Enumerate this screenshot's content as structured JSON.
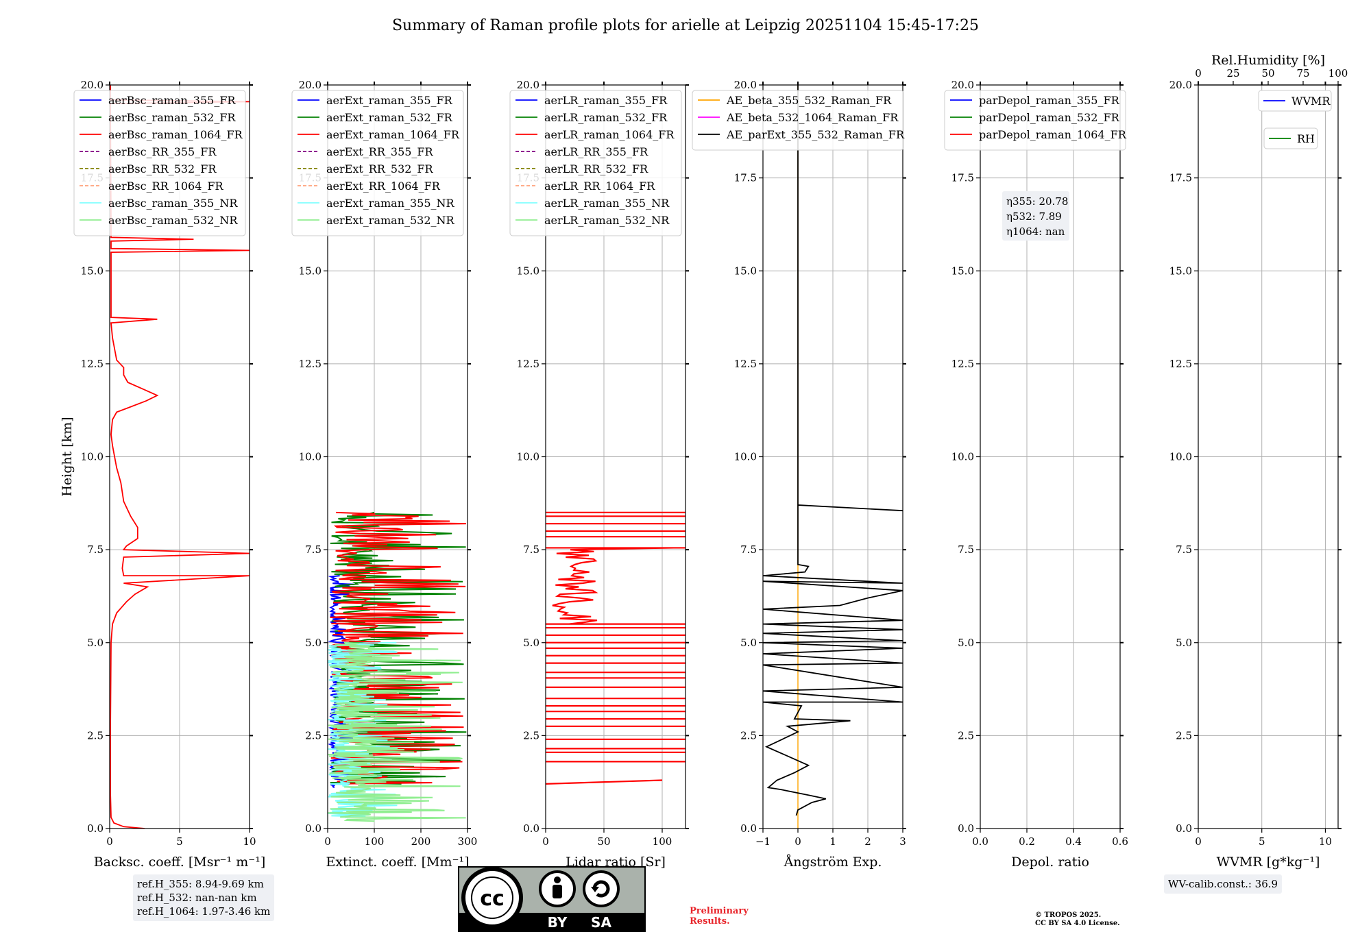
{
  "figure_title": "Summary of Raman profile plots for arielle at Leipzig 20251104 15:45-17:25",
  "ref_heights": [
    "ref.H_355: 8.94-9.69 km",
    "ref.H_532: nan-nan km",
    "ref.H_1064: 1.97-3.46 km"
  ],
  "wv_calib": "WV-calib.const.: 36.9",
  "preliminary": [
    "Preliminary",
    "Results."
  ],
  "copyright": [
    "© TROPOS 2025.",
    "CC BY SA 4.0 License."
  ],
  "license_badge": {
    "text": "CC BY SA",
    "label_by": "BY",
    "label_sa": "SA"
  },
  "colors": {
    "c355": "#0000ff",
    "c532": "#008000",
    "c1064": "#ff0000",
    "rr355": "#800080",
    "rr532": "#808000",
    "rr1064": "#ffa07a",
    "nr355": "#80ffff",
    "nr532": "#90ee90",
    "ae_beta_355_532": "#ffa500",
    "ae_beta_532_1064": "#ff00ff",
    "ae_ext": "#000000",
    "rh": "#008000"
  },
  "chart_data": [
    {
      "type": "line",
      "panel": "backscatter",
      "ylabel": "Height [km]",
      "xlabel": "Backsc. coeff. [Msr⁻¹ m⁻¹]",
      "xlim": [
        0,
        10
      ],
      "ylim": [
        0,
        20
      ],
      "xticks": [
        0,
        5,
        10
      ],
      "yticks": [
        0,
        2.5,
        5,
        7.5,
        10,
        12.5,
        15,
        17.5,
        20
      ],
      "legend": [
        "aerBsc_raman_355_FR",
        "aerBsc_raman_532_FR",
        "aerBsc_raman_1064_FR",
        "aerBsc_RR_355_FR",
        "aerBsc_RR_532_FR",
        "aerBsc_RR_1064_FR",
        "aerBsc_raman_355_NR",
        "aerBsc_raman_532_NR"
      ],
      "series": [
        {
          "name": "aerBsc_raman_1064_FR",
          "points": [
            [
              2.5,
              0.0
            ],
            [
              1.0,
              0.05
            ],
            [
              0.3,
              0.15
            ],
            [
              0.1,
              0.3
            ],
            [
              0.05,
              1.0
            ],
            [
              0.05,
              2.5
            ],
            [
              0.08,
              4.0
            ],
            [
              0.1,
              5.0
            ],
            [
              0.2,
              5.5
            ],
            [
              0.5,
              5.8
            ],
            [
              1.2,
              6.1
            ],
            [
              1.8,
              6.3
            ],
            [
              2.7,
              6.5
            ],
            [
              1.0,
              6.6
            ],
            [
              10,
              6.8
            ],
            [
              1.0,
              6.8
            ],
            [
              0.9,
              7.0
            ],
            [
              1.0,
              7.3
            ],
            [
              10,
              7.4
            ],
            [
              1.0,
              7.5
            ],
            [
              1.2,
              7.6
            ],
            [
              2.0,
              7.8
            ],
            [
              2.0,
              8.1
            ],
            [
              1.5,
              8.4
            ],
            [
              1.0,
              8.8
            ],
            [
              0.8,
              9.3
            ],
            [
              0.5,
              9.7
            ],
            [
              0.2,
              10.3
            ],
            [
              0.1,
              10.6
            ],
            [
              0.2,
              11.0
            ],
            [
              0.5,
              11.2
            ],
            [
              1.2,
              11.3
            ],
            [
              2.6,
              11.5
            ],
            [
              3.4,
              11.65
            ],
            [
              2.5,
              11.8
            ],
            [
              1.3,
              12.0
            ],
            [
              1.0,
              12.2
            ],
            [
              1.0,
              12.4
            ],
            [
              0.5,
              12.6
            ],
            [
              0.2,
              13.2
            ],
            [
              0.1,
              13.6
            ],
            [
              3.4,
              13.7
            ],
            [
              0.1,
              13.75
            ],
            [
              0.1,
              15.5
            ],
            [
              10,
              15.55
            ],
            [
              0.1,
              15.6
            ],
            [
              0.1,
              15.8
            ],
            [
              6.0,
              15.85
            ],
            [
              0.1,
              15.9
            ],
            [
              0.1,
              16.1
            ],
            [
              0.05,
              19.5
            ],
            [
              10,
              19.55
            ],
            [
              0.05,
              19.6
            ],
            [
              0.05,
              20.0
            ]
          ],
          "color_key": "c1064"
        }
      ]
    },
    {
      "type": "line",
      "panel": "extinction",
      "xlabel": "Extinct. coeff. [Mm⁻¹]",
      "xlim": [
        0,
        300
      ],
      "ylim": [
        0,
        20
      ],
      "xticks": [
        0,
        100,
        200,
        300
      ],
      "yticks": [
        0,
        2.5,
        5,
        7.5,
        10,
        12.5,
        15,
        17.5,
        20
      ],
      "legend": [
        "aerExt_raman_355_FR",
        "aerExt_raman_532_FR",
        "aerExt_raman_1064_FR",
        "aerExt_RR_355_FR",
        "aerExt_RR_532_FR",
        "aerExt_RR_1064_FR",
        "aerExt_raman_355_NR",
        "aerExt_raman_532_NR"
      ],
      "series": [
        {
          "name": "aerExt_raman_355_FR",
          "color_key": "c355",
          "range": [
            1.1,
            6.8
          ],
          "spread": [
            5,
            60
          ]
        },
        {
          "name": "aerExt_raman_532_FR",
          "color_key": "c532",
          "range": [
            1.2,
            8.5
          ],
          "spread": [
            5,
            300
          ]
        },
        {
          "name": "aerExt_raman_1064_FR",
          "color_key": "c1064",
          "range": [
            1.2,
            8.5
          ],
          "spread": [
            5,
            300
          ]
        },
        {
          "name": "aerExt_raman_355_NR",
          "color_key": "nr355",
          "range": [
            0.3,
            5.0
          ],
          "spread": [
            0,
            150
          ]
        },
        {
          "name": "aerExt_raman_532_NR",
          "color_key": "nr532",
          "range": [
            0.2,
            5.0
          ],
          "spread": [
            0,
            300
          ]
        }
      ]
    },
    {
      "type": "line",
      "panel": "lidar_ratio",
      "xlabel": "Lidar ratio [Sr]",
      "xlim": [
        0,
        120
      ],
      "ylim": [
        0,
        20
      ],
      "xticks": [
        0,
        50,
        100
      ],
      "yticks": [
        0,
        2.5,
        5,
        7.5,
        10,
        12.5,
        15,
        17.5,
        20
      ],
      "legend": [
        "aerLR_raman_355_FR",
        "aerLR_raman_532_FR",
        "aerLR_raman_1064_FR",
        "aerLR_RR_355_FR",
        "aerLR_RR_532_FR",
        "aerLR_RR_1064_FR",
        "aerLR_raman_355_NR",
        "aerLR_raman_532_NR"
      ],
      "series": [
        {
          "name": "aerLR_raman_1064_FR",
          "color_key": "c1064",
          "spikes_full": [
            1.8,
            2.05,
            2.15,
            2.4,
            2.75,
            2.95,
            3.15,
            3.3,
            3.5,
            3.8,
            4.05,
            4.2,
            4.45,
            4.65,
            4.85,
            5.0,
            5.2,
            5.4,
            5.5,
            7.55,
            7.85,
            8.0,
            8.2,
            8.4,
            8.5
          ]
        }
      ]
    },
    {
      "type": "line",
      "panel": "angstrom",
      "xlabel": "Ångström Exp.",
      "xlim": [
        -1,
        3
      ],
      "ylim": [
        0,
        20
      ],
      "xticks": [
        -1,
        0,
        1,
        2,
        3
      ],
      "yticks": [
        0,
        2.5,
        5,
        7.5,
        10,
        12.5,
        15,
        17.5,
        20
      ],
      "legend": [
        "AE_beta_355_532_Raman_FR",
        "AE_beta_532_1064_Raman_FR",
        "AE_parExt_355_532_Raman_FR"
      ],
      "series": [
        {
          "name": "AE_beta_355_532_Raman_FR",
          "color_key": "ae_beta_355_532",
          "x_const": 0.0,
          "range": [
            0,
            20
          ]
        },
        {
          "name": "AE_parExt_355_532_Raman_FR",
          "color_key": "ae_ext",
          "points": [
            [
              -0.05,
              0.35
            ],
            [
              0.0,
              0.5
            ],
            [
              0.4,
              0.7
            ],
            [
              0.8,
              0.8
            ],
            [
              0.3,
              0.9
            ],
            [
              -0.5,
              1.05
            ],
            [
              -0.85,
              1.1
            ],
            [
              -0.6,
              1.3
            ],
            [
              -0.1,
              1.5
            ],
            [
              0.3,
              1.7
            ],
            [
              -0.3,
              1.95
            ],
            [
              -0.9,
              2.2
            ],
            [
              0.0,
              2.6
            ],
            [
              -0.3,
              2.75
            ],
            [
              1.5,
              2.9
            ],
            [
              -0.1,
              2.95
            ],
            [
              0.1,
              3.3
            ],
            [
              -1,
              3.4
            ],
            [
              3,
              3.4
            ],
            [
              -1,
              3.7
            ],
            [
              3,
              3.8
            ],
            [
              -1,
              4.4
            ],
            [
              3,
              4.45
            ],
            [
              -1,
              4.7
            ],
            [
              3,
              4.85
            ],
            [
              -1,
              5.0
            ],
            [
              3,
              5.05
            ],
            [
              -1,
              5.25
            ],
            [
              3,
              5.35
            ],
            [
              -1,
              5.5
            ],
            [
              3,
              5.6
            ],
            [
              -1,
              5.9
            ],
            [
              1.2,
              6.0
            ],
            [
              2.0,
              6.2
            ],
            [
              3,
              6.4
            ],
            [
              -1,
              6.65
            ],
            [
              3,
              6.6
            ],
            [
              -1,
              6.8
            ],
            [
              0.2,
              6.9
            ],
            [
              0.3,
              7.05
            ],
            [
              0.0,
              7.1
            ],
            [
              0.0,
              8.7
            ],
            [
              3,
              8.55
            ],
            [
              0.0,
              8.7
            ],
            [
              0.0,
              20
            ]
          ]
        }
      ]
    },
    {
      "type": "line",
      "panel": "depol",
      "xlabel": "Depol. ratio",
      "xlim": [
        0,
        0.6
      ],
      "ylim": [
        0,
        20
      ],
      "xticks": [
        0.0,
        0.2,
        0.4,
        0.6
      ],
      "yticks": [
        0,
        2.5,
        5,
        7.5,
        10,
        12.5,
        15,
        17.5,
        20
      ],
      "legend": [
        "parDepol_raman_355_FR",
        "parDepol_raman_532_FR",
        "parDepol_raman_1064_FR"
      ],
      "annotations": [
        "η355: 20.78",
        "η532: 7.89",
        "η1064: nan"
      ],
      "series": []
    },
    {
      "type": "line",
      "panel": "wvmr",
      "xlabel": "WVMR [g*kg⁻¹]",
      "top_xlabel": "Rel.Humidity [%]",
      "xlim": [
        0,
        11
      ],
      "top_xlim": [
        0,
        100
      ],
      "ylim": [
        0,
        20
      ],
      "xticks": [
        0,
        5,
        10
      ],
      "top_xticks": [
        0,
        25,
        50,
        75,
        100
      ],
      "yticks": [
        0,
        2.5,
        5,
        7.5,
        10,
        12.5,
        15,
        17.5,
        20
      ],
      "legend": [
        "WVMR",
        "RH"
      ],
      "series": []
    }
  ]
}
